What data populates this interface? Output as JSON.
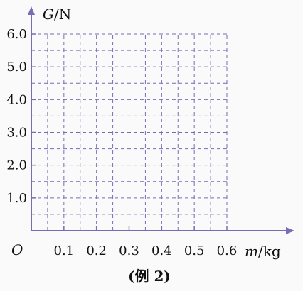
{
  "chart_data": {
    "type": "scatter",
    "xlabel_var": "m",
    "xlabel_unit": "/kg",
    "ylabel_var": "G",
    "ylabel_unit": "/N",
    "origin_label": "O",
    "x_ticks": [
      "0.1",
      "0.2",
      "0.3",
      "0.4",
      "0.5",
      "0.6"
    ],
    "y_ticks": [
      "1.0",
      "2.0",
      "3.0",
      "4.0",
      "5.0",
      "6.0"
    ],
    "xlim": [
      0,
      0.6
    ],
    "ylim": [
      0,
      6.0
    ],
    "x_minor_per_major": 2,
    "y_minor_per_major": 2,
    "grid": true,
    "grid_style": "dashed",
    "series": []
  },
  "caption": "(例 2)",
  "colors": {
    "axis": "#7b6bb5",
    "grid": "#7b6bb5",
    "text": "#111111"
  }
}
